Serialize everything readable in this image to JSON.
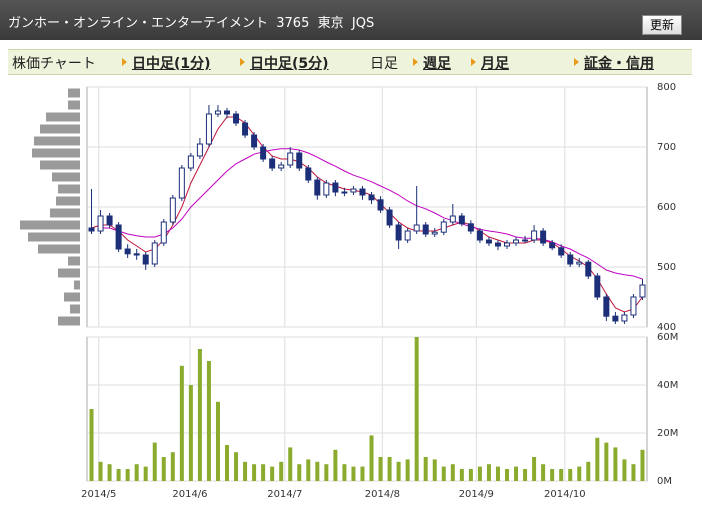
{
  "header": {
    "title": "ガンホー・オンライン・エンターテイメント  3765  東京  JQS",
    "button": "更新"
  },
  "tabs": {
    "current_page": "株価チャート",
    "items": [
      "日中足(1分)",
      "日中足(5分)",
      "日足",
      "週足",
      "月足",
      "証金・信用"
    ],
    "selected": "日足"
  },
  "chart_data": {
    "type": "candlestick",
    "xlim": [
      -0.5,
      61.5
    ],
    "xticks": [
      {
        "value": 0.8,
        "label": "2014/5"
      },
      {
        "value": 10.9,
        "label": "2014/6"
      },
      {
        "value": 21.4,
        "label": "2014/7"
      },
      {
        "value": 32.2,
        "label": "2014/8"
      },
      {
        "value": 42.6,
        "label": "2014/9"
      },
      {
        "value": 52.4,
        "label": "2014/10"
      }
    ],
    "ylim": [
      400,
      800
    ],
    "yticks": [
      400,
      500,
      600,
      700,
      800
    ],
    "grid": true,
    "up_color": "#ffffff",
    "down_color": "#1c2f78",
    "edge_color": "#1c2f78",
    "open": [
      565,
      560,
      585,
      570,
      530,
      522,
      520,
      505,
      540,
      575,
      615,
      665,
      685,
      705,
      755,
      760,
      755,
      740,
      720,
      700,
      680,
      665,
      670,
      690,
      665,
      645,
      620,
      640,
      625,
      625,
      630,
      620,
      612,
      595,
      570,
      545,
      560,
      570,
      555,
      558,
      575,
      585,
      572,
      560,
      545,
      540,
      535,
      540,
      545,
      545,
      560,
      540,
      532,
      520,
      505,
      508,
      485,
      450,
      418,
      410,
      420,
      450
    ],
    "high": [
      630,
      595,
      590,
      575,
      538,
      530,
      525,
      545,
      580,
      620,
      670,
      690,
      715,
      770,
      770,
      765,
      760,
      745,
      725,
      705,
      685,
      675,
      700,
      695,
      670,
      650,
      645,
      645,
      632,
      635,
      635,
      625,
      618,
      600,
      575,
      565,
      635,
      575,
      565,
      580,
      605,
      590,
      578,
      565,
      550,
      545,
      545,
      550,
      552,
      570,
      565,
      545,
      538,
      525,
      515,
      512,
      490,
      455,
      425,
      425,
      455,
      480
    ],
    "low": [
      555,
      555,
      565,
      525,
      515,
      512,
      495,
      500,
      535,
      570,
      610,
      660,
      680,
      700,
      750,
      748,
      735,
      715,
      695,
      675,
      660,
      660,
      665,
      660,
      640,
      612,
      615,
      618,
      618,
      620,
      612,
      605,
      590,
      565,
      530,
      540,
      555,
      550,
      550,
      553,
      570,
      568,
      555,
      540,
      535,
      528,
      530,
      535,
      540,
      540,
      535,
      528,
      515,
      500,
      500,
      480,
      445,
      410,
      405,
      405,
      415,
      445
    ],
    "close": [
      560,
      585,
      570,
      530,
      522,
      520,
      505,
      540,
      575,
      615,
      665,
      685,
      705,
      755,
      760,
      755,
      740,
      720,
      700,
      680,
      665,
      670,
      690,
      665,
      645,
      620,
      640,
      625,
      625,
      630,
      620,
      612,
      595,
      570,
      545,
      560,
      570,
      555,
      558,
      575,
      585,
      572,
      560,
      545,
      540,
      535,
      540,
      545,
      545,
      560,
      540,
      532,
      520,
      505,
      508,
      485,
      450,
      418,
      410,
      420,
      450,
      470
    ],
    "moving_averages": [
      {
        "color": "#c0143c",
        "values": [
          565,
          570,
          570,
          560,
          545,
          535,
          525,
          530,
          545,
          570,
          600,
          640,
          670,
          700,
          730,
          750,
          750,
          740,
          720,
          700,
          685,
          680,
          680,
          675,
          665,
          650,
          640,
          635,
          630,
          628,
          625,
          620,
          605,
          590,
          575,
          565,
          560,
          560,
          560,
          565,
          570,
          575,
          570,
          560,
          550,
          545,
          540,
          540,
          540,
          545,
          545,
          540,
          530,
          518,
          510,
          500,
          480,
          455,
          432,
          425,
          430,
          450
        ]
      },
      {
        "color": "#c000c0",
        "values": [
          null,
          565,
          565,
          560,
          555,
          552,
          550,
          550,
          555,
          565,
          580,
          600,
          615,
          630,
          645,
          660,
          672,
          680,
          688,
          692,
          695,
          697,
          697,
          695,
          690,
          683,
          675,
          668,
          660,
          653,
          648,
          642,
          635,
          628,
          620,
          610,
          602,
          597,
          590,
          582,
          577,
          572,
          567,
          563,
          560,
          558,
          555,
          550,
          548,
          548,
          546,
          542,
          535,
          530,
          522,
          515,
          505,
          495,
          490,
          487,
          485,
          480
        ]
      }
    ],
    "volume": {
      "color": "#8aab2e",
      "ylim": [
        0,
        60
      ],
      "yticks": [
        {
          "value": 0,
          "label": "0M"
        },
        {
          "value": 20,
          "label": "20M"
        },
        {
          "value": 40,
          "label": "40M"
        },
        {
          "value": 60,
          "label": "60M"
        }
      ],
      "values": [
        30,
        8,
        7,
        5,
        5,
        7,
        6,
        16,
        10,
        12,
        48,
        40,
        55,
        50,
        33,
        15,
        12,
        8,
        7,
        7,
        6,
        8,
        14,
        7,
        9,
        8,
        7,
        13,
        7,
        6,
        6,
        19,
        10,
        10,
        8,
        9,
        60,
        10,
        9,
        6,
        7,
        5,
        5,
        6,
        7,
        6,
        5,
        6,
        5,
        10,
        7,
        5,
        5,
        5,
        6,
        8,
        18,
        16,
        14,
        9,
        7,
        13
      ]
    },
    "volume_profile": {
      "color": "#9a9a9a",
      "bins": [
        400,
        420,
        440,
        460,
        480,
        500,
        520,
        540,
        560,
        580,
        600,
        620,
        640,
        660,
        680,
        700,
        720,
        740,
        760,
        780,
        800
      ],
      "values": [
        22,
        10,
        16,
        6,
        22,
        12,
        42,
        52,
        60,
        30,
        24,
        22,
        28,
        40,
        48,
        46,
        40,
        34,
        12,
        12
      ]
    }
  }
}
